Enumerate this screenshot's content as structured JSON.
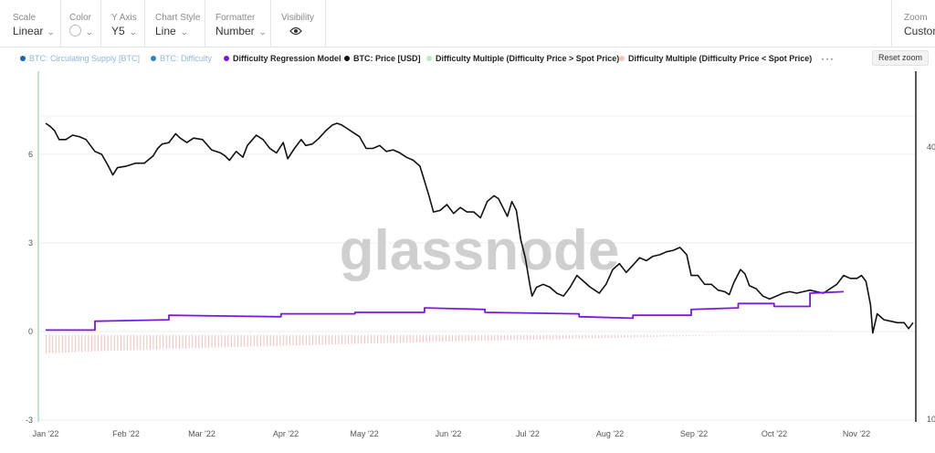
{
  "toolbar": {
    "scale": {
      "label": "Scale",
      "value": "Linear"
    },
    "color": {
      "label": "Color"
    },
    "yaxis": {
      "label": "Y Axis",
      "value": "Y5"
    },
    "chart_style": {
      "label": "Chart Style",
      "value": "Line"
    },
    "formatter": {
      "label": "Formatter",
      "value": "Number"
    },
    "visibility": {
      "label": "Visibility",
      "icon": "eye-icon"
    },
    "zoom": {
      "label": "Zoom",
      "value": "Custom"
    }
  },
  "legend": {
    "items": [
      {
        "label": "BTC: Circulating Supply [BTC]",
        "color": "#1f5fbf",
        "muted": true
      },
      {
        "label": "BTC: Difficulty",
        "color": "#2a86c8",
        "muted": true
      },
      {
        "label": "Difficulty Regression Model",
        "color": "#7b18e0",
        "muted": false
      },
      {
        "label": "BTC: Price [USD]",
        "color": "#111111",
        "muted": false
      },
      {
        "label": "Difficulty Multiple (Difficulty Price > Spot Price)",
        "color": "#b8ecc8",
        "muted": false
      },
      {
        "label": "Difficulty Multiple (Difficulty Price < Spot Price)",
        "color": "#f6c2c2",
        "muted": false
      }
    ],
    "more": "···"
  },
  "reset_zoom": "Reset zoom",
  "watermark": "glassnode",
  "chart_data": {
    "type": "line",
    "x_ticks": [
      "Jan '22",
      "Feb '22",
      "Mar '22",
      "Apr '22",
      "May '22",
      "Jun '22",
      "Jul '22",
      "Aug '22",
      "Sep '22",
      "Oct '22",
      "Nov '22"
    ],
    "y_left": {
      "ticks": [
        "6",
        "3",
        "0",
        "-3"
      ],
      "range": [
        -3,
        8
      ]
    },
    "y_right": {
      "ticks": [
        "40",
        "10"
      ]
    },
    "grid": true,
    "legend_position": "top",
    "series": [
      {
        "name": "BTC: Price [USD]",
        "color": "#111111",
        "points": [
          [
            0,
            7.05
          ],
          [
            2,
            6.95
          ],
          [
            4,
            6.8
          ],
          [
            6,
            6.5
          ],
          [
            9,
            6.5
          ],
          [
            12,
            6.65
          ],
          [
            15,
            6.6
          ],
          [
            18,
            6.5
          ],
          [
            20,
            6.3
          ],
          [
            22,
            6.1
          ],
          [
            25,
            6.0
          ],
          [
            28,
            5.6
          ],
          [
            30,
            5.3
          ],
          [
            32,
            5.55
          ],
          [
            36,
            5.6
          ],
          [
            40,
            5.7
          ],
          [
            44,
            5.7
          ],
          [
            48,
            5.95
          ],
          [
            50,
            6.2
          ],
          [
            52,
            6.35
          ],
          [
            55,
            6.4
          ],
          [
            58,
            6.7
          ],
          [
            60,
            6.55
          ],
          [
            63,
            6.4
          ],
          [
            66,
            6.55
          ],
          [
            70,
            6.5
          ],
          [
            74,
            6.15
          ],
          [
            78,
            6.05
          ],
          [
            80,
            5.95
          ],
          [
            82,
            5.8
          ],
          [
            85,
            6.1
          ],
          [
            88,
            5.9
          ],
          [
            90,
            6.3
          ],
          [
            94,
            6.65
          ],
          [
            97,
            6.5
          ],
          [
            100,
            6.2
          ],
          [
            103,
            6.05
          ],
          [
            106,
            6.4
          ],
          [
            108,
            5.85
          ],
          [
            111,
            6.2
          ],
          [
            114,
            6.5
          ],
          [
            116,
            6.3
          ],
          [
            119,
            6.35
          ],
          [
            122,
            6.55
          ],
          [
            125,
            6.8
          ],
          [
            128,
            7.0
          ],
          [
            130,
            7.05
          ],
          [
            132,
            7.0
          ],
          [
            135,
            6.85
          ],
          [
            138,
            6.7
          ],
          [
            140,
            6.6
          ],
          [
            143,
            6.2
          ],
          [
            146,
            6.2
          ],
          [
            149,
            6.3
          ],
          [
            152,
            6.1
          ],
          [
            155,
            6.15
          ],
          [
            158,
            6.05
          ],
          [
            161,
            5.9
          ],
          [
            164,
            5.8
          ],
          [
            167,
            5.6
          ],
          [
            169,
            5.1
          ],
          [
            171,
            4.6
          ],
          [
            173,
            4.05
          ],
          [
            176,
            4.1
          ],
          [
            179,
            4.3
          ],
          [
            182,
            4.0
          ],
          [
            185,
            4.2
          ],
          [
            188,
            4.05
          ],
          [
            191,
            4.05
          ],
          [
            194,
            3.85
          ],
          [
            197,
            4.4
          ],
          [
            200,
            4.6
          ],
          [
            202,
            4.5
          ],
          [
            204,
            4.2
          ],
          [
            206,
            3.9
          ],
          [
            208,
            4.4
          ],
          [
            210,
            4.1
          ],
          [
            212,
            3.1
          ],
          [
            214,
            2.5
          ],
          [
            216,
            1.6
          ],
          [
            217,
            1.2
          ],
          [
            219,
            1.5
          ],
          [
            222,
            1.6
          ],
          [
            225,
            1.5
          ],
          [
            228,
            1.3
          ],
          [
            231,
            1.2
          ],
          [
            234,
            1.5
          ],
          [
            237,
            1.9
          ],
          [
            240,
            1.7
          ],
          [
            243,
            1.5
          ],
          [
            245,
            1.4
          ],
          [
            247,
            1.3
          ],
          [
            250,
            1.6
          ],
          [
            253,
            2.1
          ],
          [
            256,
            2.3
          ],
          [
            259,
            2.0
          ],
          [
            262,
            2.25
          ],
          [
            265,
            2.5
          ],
          [
            268,
            2.4
          ],
          [
            271,
            2.55
          ],
          [
            274,
            2.6
          ],
          [
            277,
            2.7
          ],
          [
            280,
            2.75
          ],
          [
            283,
            2.85
          ],
          [
            286,
            2.6
          ],
          [
            288,
            1.9
          ],
          [
            291,
            1.9
          ],
          [
            294,
            1.6
          ],
          [
            297,
            1.6
          ],
          [
            300,
            1.4
          ],
          [
            303,
            1.35
          ],
          [
            305,
            1.25
          ],
          [
            307,
            1.65
          ],
          [
            310,
            2.1
          ],
          [
            312,
            1.95
          ],
          [
            314,
            1.55
          ],
          [
            317,
            1.45
          ],
          [
            320,
            1.2
          ],
          [
            323,
            1.1
          ],
          [
            326,
            1.2
          ],
          [
            329,
            1.3
          ],
          [
            332,
            1.35
          ],
          [
            335,
            1.3
          ],
          [
            338,
            1.35
          ],
          [
            341,
            1.4
          ],
          [
            344,
            1.35
          ],
          [
            347,
            1.3
          ],
          [
            350,
            1.45
          ],
          [
            353,
            1.6
          ],
          [
            356,
            1.9
          ],
          [
            359,
            1.8
          ],
          [
            362,
            1.8
          ],
          [
            364,
            1.9
          ],
          [
            366,
            1.7
          ],
          [
            368,
            0.9
          ],
          [
            369,
            -0.05
          ],
          [
            371,
            0.6
          ],
          [
            374,
            0.4
          ],
          [
            377,
            0.35
          ],
          [
            380,
            0.3
          ],
          [
            383,
            0.3
          ],
          [
            385,
            0.1
          ],
          [
            387,
            0.3
          ]
        ]
      },
      {
        "name": "Difficulty Regression Model",
        "color": "#7b18e0",
        "points": [
          [
            0,
            0.05
          ],
          [
            22,
            0.05
          ],
          [
            22,
            0.35
          ],
          [
            55,
            0.4
          ],
          [
            55,
            0.55
          ],
          [
            105,
            0.5
          ],
          [
            105,
            0.6
          ],
          [
            138,
            0.6
          ],
          [
            138,
            0.65
          ],
          [
            169,
            0.65
          ],
          [
            169,
            0.8
          ],
          [
            196,
            0.75
          ],
          [
            196,
            0.65
          ],
          [
            238,
            0.6
          ],
          [
            238,
            0.5
          ],
          [
            262,
            0.45
          ],
          [
            262,
            0.55
          ],
          [
            288,
            0.55
          ],
          [
            288,
            0.75
          ],
          [
            309,
            0.8
          ],
          [
            309,
            0.95
          ],
          [
            325,
            0.95
          ],
          [
            325,
            0.85
          ],
          [
            341,
            0.85
          ],
          [
            341,
            1.3
          ],
          [
            356,
            1.35
          ]
        ]
      },
      {
        "name": "Difficulty Multiple (Difficulty Price < Spot Price)",
        "color": "#f6c2c2",
        "type": "bar",
        "x_range": [
          0,
          352
        ],
        "values_start": -0.75,
        "values_end": -0.05
      }
    ]
  }
}
